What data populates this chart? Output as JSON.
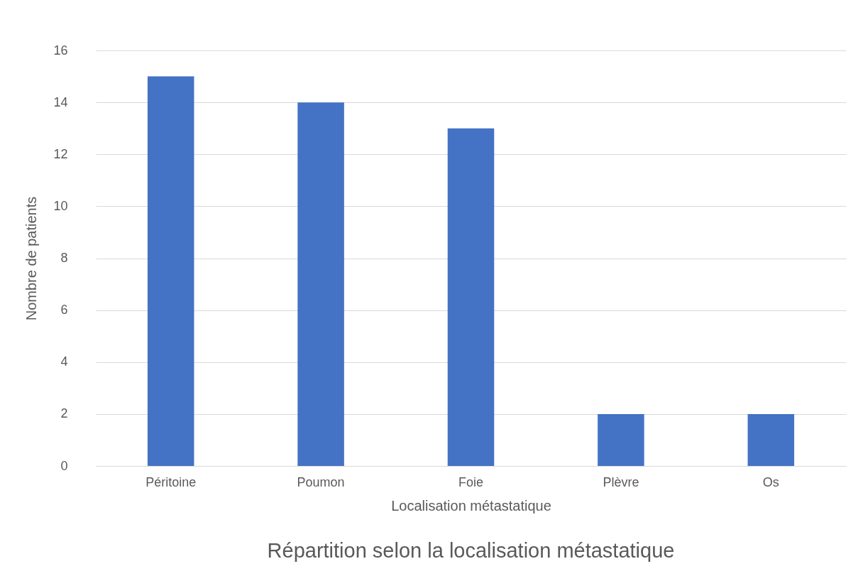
{
  "chart_data": {
    "type": "bar",
    "title": "Répartition selon la localisation métastatique",
    "xlabel": "Localisation métastatique",
    "ylabel": "Nombre de patients",
    "categories": [
      "Péritoine",
      "Poumon",
      "Foie",
      "Plèvre",
      "Os"
    ],
    "values": [
      15,
      14,
      13,
      2,
      2
    ],
    "color": "#4472c4",
    "ylim": [
      0,
      16
    ],
    "yticks": [
      0,
      2,
      4,
      6,
      8,
      10,
      12,
      14,
      16
    ],
    "grid": "y"
  }
}
